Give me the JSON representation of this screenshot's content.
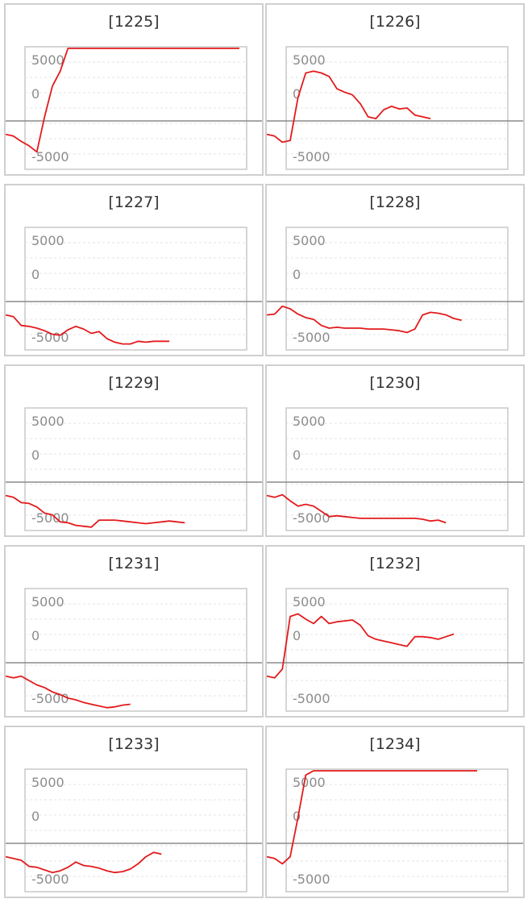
{
  "chart_data": [
    {
      "type": "line",
      "title": "[1225]",
      "ylim": [
        -6800,
        6800
      ],
      "y_ticks": [
        {
          "value": 5000,
          "label": "5000"
        },
        {
          "value": 0,
          "label": "0"
        },
        {
          "value": -5000,
          "label": "-5000"
        }
      ],
      "series_color": "#e31a1c",
      "x": [
        0,
        1,
        2,
        3,
        4,
        5,
        6,
        7,
        8,
        9,
        10,
        11,
        12,
        13,
        14,
        15,
        16,
        17,
        18,
        19,
        20,
        21,
        22,
        23,
        24,
        25,
        26,
        27,
        28,
        29,
        30
      ],
      "values": [
        -3000,
        -3200,
        -3800,
        -4300,
        -5000,
        -1000,
        2500,
        4200,
        6800,
        6800,
        6800,
        6800,
        6800,
        6800,
        6800,
        6800,
        6800,
        6800,
        6800,
        6800,
        6800,
        6800,
        6800,
        6800,
        6800,
        6800,
        6800,
        6800,
        6800,
        6800,
        6800
      ]
    },
    {
      "type": "line",
      "title": "[1226]",
      "ylim": [
        -6800,
        6800
      ],
      "y_ticks": [
        {
          "value": 5000,
          "label": "5000"
        },
        {
          "value": 0,
          "label": "0"
        },
        {
          "value": -5000,
          "label": "-5000"
        }
      ],
      "series_color": "#e31a1c",
      "x": [
        0,
        1,
        2,
        3,
        4,
        5,
        6,
        7,
        8,
        9,
        10,
        11,
        12,
        13,
        14,
        15,
        16,
        17,
        18,
        19,
        20,
        21
      ],
      "values": [
        -3000,
        -3200,
        -3900,
        -3700,
        1200,
        4000,
        4200,
        4000,
        3600,
        2200,
        1800,
        1500,
        500,
        -1000,
        -1200,
        -200,
        200,
        -100,
        0,
        -800,
        -1000,
        -1200
      ]
    },
    {
      "type": "line",
      "title": "[1227]",
      "ylim": [
        -6800,
        6800
      ],
      "y_ticks": [
        {
          "value": 5000,
          "label": "5000"
        },
        {
          "value": 0,
          "label": "0"
        },
        {
          "value": -5000,
          "label": "-5000"
        }
      ],
      "series_color": "#e31a1c",
      "x": [
        0,
        1,
        2,
        3,
        4,
        5,
        6,
        7,
        8,
        9,
        10,
        11,
        12,
        13,
        14,
        15,
        16,
        17,
        18,
        19,
        20,
        21
      ],
      "values": [
        -3000,
        -3200,
        -4200,
        -4300,
        -4500,
        -4800,
        -5200,
        -5300,
        -4700,
        -4300,
        -4600,
        -5100,
        -4900,
        -5700,
        -6100,
        -6300,
        -6300,
        -6000,
        -6100,
        -6000,
        -6000,
        -6000
      ]
    },
    {
      "type": "line",
      "title": "[1228]",
      "ylim": [
        -6800,
        6800
      ],
      "y_ticks": [
        {
          "value": 5000,
          "label": "5000"
        },
        {
          "value": 0,
          "label": "0"
        },
        {
          "value": -5000,
          "label": "-5000"
        }
      ],
      "series_color": "#e31a1c",
      "x": [
        0,
        1,
        2,
        3,
        4,
        5,
        6,
        7,
        8,
        9,
        10,
        11,
        12,
        13,
        14,
        15,
        16,
        17,
        18,
        19,
        20,
        21,
        22,
        23,
        24,
        25
      ],
      "values": [
        -3000,
        -2900,
        -2000,
        -2300,
        -2900,
        -3300,
        -3500,
        -4200,
        -4500,
        -4400,
        -4500,
        -4500,
        -4500,
        -4600,
        -4600,
        -4600,
        -4700,
        -4800,
        -5000,
        -4600,
        -3000,
        -2700,
        -2800,
        -3000,
        -3400,
        -3600
      ]
    },
    {
      "type": "line",
      "title": "[1229]",
      "ylim": [
        -6800,
        6800
      ],
      "y_ticks": [
        {
          "value": 5000,
          "label": "5000"
        },
        {
          "value": 0,
          "label": "0"
        },
        {
          "value": -5000,
          "label": "-5000"
        }
      ],
      "series_color": "#e31a1c",
      "x": [
        0,
        1,
        2,
        3,
        4,
        5,
        6,
        7,
        8,
        9,
        10,
        11,
        12,
        13,
        14,
        15,
        16,
        17,
        18,
        19,
        20,
        21,
        22,
        23
      ],
      "values": [
        -3000,
        -3200,
        -3800,
        -3900,
        -4300,
        -5000,
        -5200,
        -6000,
        -6100,
        -6400,
        -6500,
        -6600,
        -5800,
        -5800,
        -5800,
        -5900,
        -6000,
        -6100,
        -6200,
        -6100,
        -6000,
        -5900,
        -6000,
        -6100
      ]
    },
    {
      "type": "line",
      "title": "[1230]",
      "ylim": [
        -6800,
        6800
      ],
      "y_ticks": [
        {
          "value": 5000,
          "label": "5000"
        },
        {
          "value": 0,
          "label": "0"
        },
        {
          "value": -5000,
          "label": "-5000"
        }
      ],
      "series_color": "#e31a1c",
      "x": [
        0,
        1,
        2,
        3,
        4,
        5,
        6,
        7,
        8,
        9,
        10,
        11,
        12,
        13,
        14,
        15,
        16,
        17,
        18,
        19,
        20,
        21,
        22,
        23
      ],
      "values": [
        -3000,
        -3200,
        -2900,
        -3600,
        -4200,
        -4000,
        -4200,
        -4800,
        -5400,
        -5300,
        -5400,
        -5500,
        -5600,
        -5600,
        -5600,
        -5600,
        -5600,
        -5600,
        -5600,
        -5600,
        -5700,
        -5900,
        -5800,
        -6100
      ]
    },
    {
      "type": "line",
      "title": "[1231]",
      "ylim": [
        -6800,
        6800
      ],
      "y_ticks": [
        {
          "value": 5000,
          "label": "5000"
        },
        {
          "value": 0,
          "label": "0"
        },
        {
          "value": -5000,
          "label": "-5000"
        }
      ],
      "series_color": "#e31a1c",
      "x": [
        0,
        1,
        2,
        3,
        4,
        5,
        6,
        7,
        8,
        9,
        10,
        11,
        12,
        13,
        14,
        15,
        16
      ],
      "values": [
        -3000,
        -3200,
        -3000,
        -3500,
        -4000,
        -4300,
        -4800,
        -5100,
        -5500,
        -5700,
        -6000,
        -6200,
        -6400,
        -6600,
        -6500,
        -6300,
        -6200
      ]
    },
    {
      "type": "line",
      "title": "[1232]",
      "ylim": [
        -6800,
        6800
      ],
      "y_ticks": [
        {
          "value": 5000,
          "label": "5000"
        },
        {
          "value": 0,
          "label": "0"
        },
        {
          "value": -5000,
          "label": "-5000"
        }
      ],
      "series_color": "#e31a1c",
      "x": [
        0,
        1,
        2,
        3,
        4,
        5,
        6,
        7,
        8,
        9,
        10,
        11,
        12,
        13,
        14,
        15,
        16,
        17,
        18,
        19,
        20,
        21,
        22,
        23,
        24
      ],
      "values": [
        -3000,
        -3200,
        -2200,
        3800,
        4100,
        3500,
        3000,
        3800,
        3000,
        3200,
        3300,
        3400,
        2800,
        1600,
        1200,
        1000,
        800,
        600,
        400,
        1500,
        1500,
        1400,
        1200,
        1500,
        1800
      ]
    },
    {
      "type": "line",
      "title": "[1233]",
      "ylim": [
        -6800,
        6800
      ],
      "y_ticks": [
        {
          "value": 5000,
          "label": "5000"
        },
        {
          "value": 0,
          "label": "0"
        },
        {
          "value": -5000,
          "label": "-5000"
        }
      ],
      "series_color": "#e31a1c",
      "x": [
        0,
        1,
        2,
        3,
        4,
        5,
        6,
        7,
        8,
        9,
        10,
        11,
        12,
        13,
        14,
        15,
        16,
        17,
        18,
        19,
        20
      ],
      "values": [
        -3000,
        -3200,
        -3400,
        -4100,
        -4200,
        -4500,
        -4800,
        -4600,
        -4200,
        -3600,
        -4000,
        -4100,
        -4300,
        -4600,
        -4800,
        -4700,
        -4400,
        -3800,
        -3000,
        -2500,
        -2700
      ]
    },
    {
      "type": "line",
      "title": "[1234]",
      "ylim": [
        -6800,
        6800
      ],
      "y_ticks": [
        {
          "value": 5000,
          "label": "5000"
        },
        {
          "value": 0,
          "label": "0"
        },
        {
          "value": -5000,
          "label": "-5000"
        }
      ],
      "series_color": "#e31a1c",
      "x": [
        0,
        1,
        2,
        3,
        4,
        5,
        6,
        7,
        8,
        9,
        10,
        11,
        12,
        13,
        14,
        15,
        16,
        17,
        18,
        19,
        20,
        21,
        22,
        23,
        24,
        25,
        26,
        27
      ],
      "values": [
        -3000,
        -3200,
        -3800,
        -3000,
        1500,
        6300,
        6800,
        6800,
        6800,
        6800,
        6800,
        6800,
        6800,
        6800,
        6800,
        6800,
        6800,
        6800,
        6800,
        6800,
        6800,
        6800,
        6800,
        6800,
        6800,
        6800,
        6800,
        6800
      ]
    }
  ]
}
